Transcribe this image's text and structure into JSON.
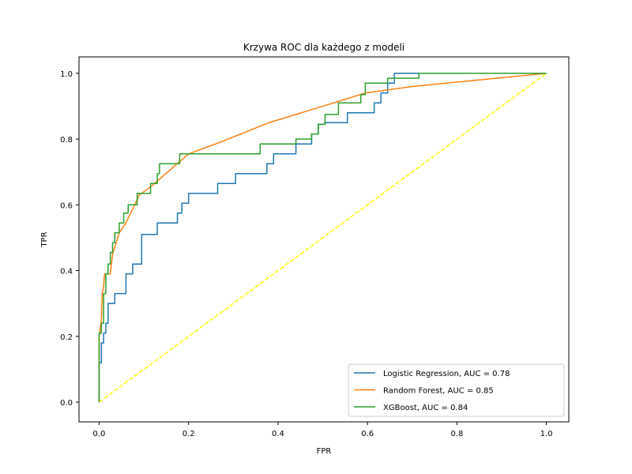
{
  "chart_data": {
    "type": "line",
    "title": "Krzywa ROC dla każdego z modeli",
    "xlabel": "FPR",
    "ylabel": "TPR",
    "xlim": [
      -0.045,
      1.05
    ],
    "ylim": [
      -0.06,
      1.05
    ],
    "xticks": [
      0.0,
      0.2,
      0.4,
      0.6,
      0.8,
      1.0
    ],
    "yticks": [
      0.0,
      0.2,
      0.4,
      0.6,
      0.8,
      1.0
    ],
    "xtick_labels": [
      "0.0",
      "0.2",
      "0.4",
      "0.6",
      "0.8",
      "1.0"
    ],
    "ytick_labels": [
      "0.0",
      "0.2",
      "0.4",
      "0.6",
      "0.8",
      "1.0"
    ],
    "grid": false,
    "legend_position": "bottom-right",
    "series": [
      {
        "name": "Logistic Regression, AUC = 0.78",
        "color": "#1f77b4",
        "style": "step",
        "x": [
          0.0,
          0.0,
          0.0,
          0.005,
          0.005,
          0.01,
          0.01,
          0.015,
          0.015,
          0.02,
          0.02,
          0.035,
          0.035,
          0.06,
          0.06,
          0.075,
          0.075,
          0.095,
          0.095,
          0.13,
          0.13,
          0.175,
          0.175,
          0.185,
          0.185,
          0.2,
          0.2,
          0.265,
          0.265,
          0.305,
          0.305,
          0.375,
          0.375,
          0.39,
          0.39,
          0.44,
          0.44,
          0.475,
          0.475,
          0.49,
          0.49,
          0.505,
          0.505,
          0.555,
          0.555,
          0.615,
          0.615,
          0.63,
          0.63,
          0.645,
          0.645,
          0.66,
          0.66,
          0.715,
          0.715,
          1.0
        ],
        "y": [
          0.0,
          0.03,
          0.12,
          0.12,
          0.18,
          0.18,
          0.21,
          0.21,
          0.24,
          0.24,
          0.3,
          0.3,
          0.33,
          0.33,
          0.39,
          0.39,
          0.42,
          0.42,
          0.51,
          0.51,
          0.545,
          0.545,
          0.575,
          0.575,
          0.605,
          0.605,
          0.635,
          0.635,
          0.665,
          0.665,
          0.695,
          0.695,
          0.725,
          0.725,
          0.755,
          0.755,
          0.785,
          0.785,
          0.815,
          0.815,
          0.845,
          0.845,
          0.85,
          0.85,
          0.88,
          0.88,
          0.91,
          0.91,
          0.94,
          0.94,
          0.97,
          0.97,
          1.0,
          1.0,
          1.0,
          1.0
        ]
      },
      {
        "name": "Random Forest, AUC = 0.85",
        "color": "#ff7f0e",
        "style": "line",
        "x": [
          0.0,
          0.0,
          0.005,
          0.007,
          0.01,
          0.012,
          0.025,
          0.03,
          0.045,
          0.06,
          0.09,
          0.12,
          0.17,
          0.2,
          0.27,
          0.38,
          0.5,
          0.595,
          0.7,
          1.0
        ],
        "y": [
          0.0,
          0.2,
          0.25,
          0.33,
          0.35,
          0.39,
          0.39,
          0.45,
          0.515,
          0.545,
          0.63,
          0.66,
          0.72,
          0.755,
          0.79,
          0.85,
          0.9,
          0.94,
          0.96,
          1.0
        ]
      },
      {
        "name": "XGBoost, AUC = 0.84",
        "color": "#2ca02c",
        "style": "step",
        "x": [
          0.0,
          0.0,
          0.005,
          0.005,
          0.01,
          0.01,
          0.015,
          0.015,
          0.02,
          0.02,
          0.025,
          0.025,
          0.03,
          0.03,
          0.035,
          0.035,
          0.045,
          0.045,
          0.055,
          0.055,
          0.065,
          0.065,
          0.085,
          0.085,
          0.115,
          0.115,
          0.13,
          0.13,
          0.135,
          0.135,
          0.18,
          0.18,
          0.36,
          0.36,
          0.44,
          0.44,
          0.475,
          0.475,
          0.49,
          0.49,
          0.505,
          0.505,
          0.535,
          0.535,
          0.585,
          0.585,
          0.595,
          0.595,
          0.645,
          0.645,
          0.715,
          0.715,
          1.0
        ],
        "y": [
          0.0,
          0.21,
          0.21,
          0.24,
          0.24,
          0.33,
          0.33,
          0.39,
          0.39,
          0.42,
          0.42,
          0.455,
          0.455,
          0.485,
          0.485,
          0.515,
          0.515,
          0.545,
          0.545,
          0.575,
          0.575,
          0.6,
          0.6,
          0.635,
          0.635,
          0.665,
          0.665,
          0.695,
          0.695,
          0.725,
          0.725,
          0.755,
          0.755,
          0.785,
          0.785,
          0.8,
          0.8,
          0.815,
          0.815,
          0.845,
          0.845,
          0.875,
          0.875,
          0.91,
          0.91,
          0.935,
          0.935,
          0.97,
          0.97,
          0.985,
          0.985,
          1.0,
          1.0
        ]
      },
      {
        "name": "",
        "color": "#ffff00",
        "style": "dashed",
        "x": [
          0.0,
          1.0
        ],
        "y": [
          0.0,
          1.0
        ]
      }
    ]
  }
}
